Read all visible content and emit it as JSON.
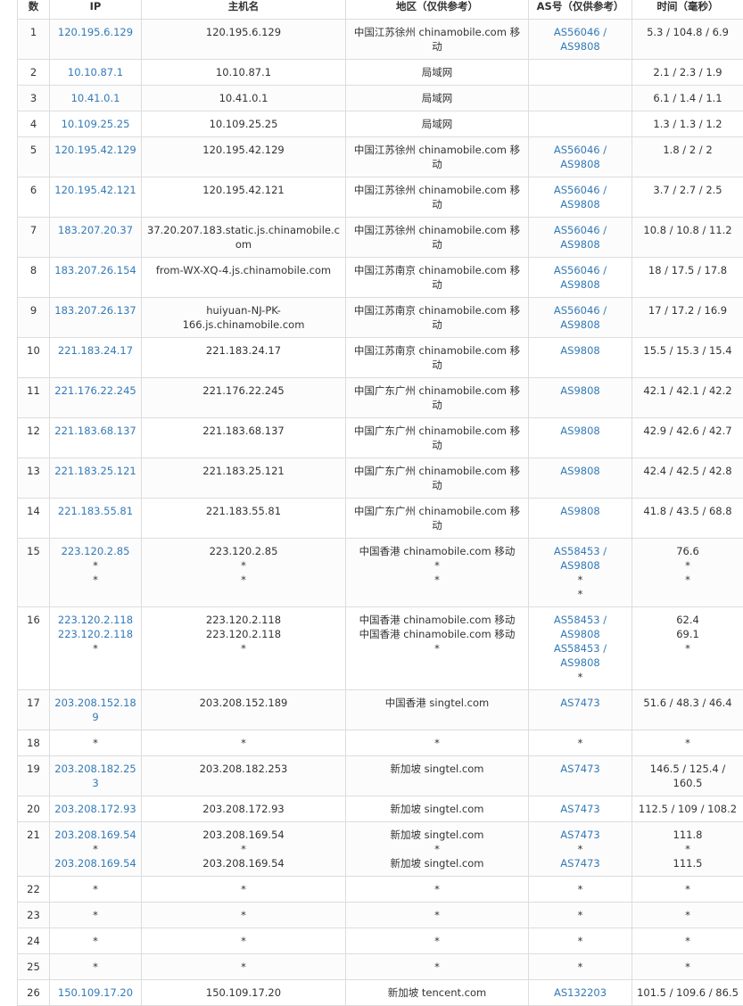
{
  "table": {
    "header": [
      "数",
      "IP",
      "主机名",
      "地区（仅供参考）",
      "AS号（仅供参考）",
      "时间（毫秒）"
    ],
    "rows": [
      {
        "hop": "1",
        "ip": [
          "120.195.6.129"
        ],
        "host": [
          "120.195.6.129"
        ],
        "region": [
          "中国江苏徐州 chinamobile.com 移动"
        ],
        "as": [
          "AS56046 / AS9808"
        ],
        "time": [
          "5.3 / 104.8 / 6.9"
        ]
      },
      {
        "hop": "2",
        "ip": [
          "10.10.87.1"
        ],
        "host": [
          "10.10.87.1"
        ],
        "region": [
          "局域网"
        ],
        "as": [],
        "time": [
          "2.1 / 2.3 / 1.9"
        ]
      },
      {
        "hop": "3",
        "ip": [
          "10.41.0.1"
        ],
        "host": [
          "10.41.0.1"
        ],
        "region": [
          "局域网"
        ],
        "as": [],
        "time": [
          "6.1 / 1.4 / 1.1"
        ]
      },
      {
        "hop": "4",
        "ip": [
          "10.109.25.25"
        ],
        "host": [
          "10.109.25.25"
        ],
        "region": [
          "局域网"
        ],
        "as": [],
        "time": [
          "1.3 / 1.3 / 1.2"
        ]
      },
      {
        "hop": "5",
        "ip": [
          "120.195.42.129"
        ],
        "host": [
          "120.195.42.129"
        ],
        "region": [
          "中国江苏徐州 chinamobile.com 移动"
        ],
        "as": [
          "AS56046 / AS9808"
        ],
        "time": [
          "1.8 / 2 / 2"
        ]
      },
      {
        "hop": "6",
        "ip": [
          "120.195.42.121"
        ],
        "host": [
          "120.195.42.121"
        ],
        "region": [
          "中国江苏徐州 chinamobile.com 移动"
        ],
        "as": [
          "AS56046 / AS9808"
        ],
        "time": [
          "3.7 / 2.7 / 2.5"
        ]
      },
      {
        "hop": "7",
        "ip": [
          "183.207.20.37"
        ],
        "host": [
          "37.20.207.183.static.js.chinamobile.com"
        ],
        "region": [
          "中国江苏徐州 chinamobile.com 移动"
        ],
        "as": [
          "AS56046 / AS9808"
        ],
        "time": [
          "10.8 / 10.8 / 11.2"
        ]
      },
      {
        "hop": "8",
        "ip": [
          "183.207.26.154"
        ],
        "host": [
          "from-WX-XQ-4.js.chinamobile.com"
        ],
        "region": [
          "中国江苏南京 chinamobile.com 移动"
        ],
        "as": [
          "AS56046 / AS9808"
        ],
        "time": [
          "18 / 17.5 / 17.8"
        ]
      },
      {
        "hop": "9",
        "ip": [
          "183.207.26.137"
        ],
        "host": [
          "huiyuan-NJ-PK-166.js.chinamobile.com"
        ],
        "region": [
          "中国江苏南京 chinamobile.com 移动"
        ],
        "as": [
          "AS56046 / AS9808"
        ],
        "time": [
          "17 / 17.2 / 16.9"
        ]
      },
      {
        "hop": "10",
        "ip": [
          "221.183.24.17"
        ],
        "host": [
          "221.183.24.17"
        ],
        "region": [
          "中国江苏南京 chinamobile.com 移动"
        ],
        "as": [
          "AS9808"
        ],
        "time": [
          "15.5 / 15.3 / 15.4"
        ]
      },
      {
        "hop": "11",
        "ip": [
          "221.176.22.245"
        ],
        "host": [
          "221.176.22.245"
        ],
        "region": [
          "中国广东广州 chinamobile.com 移动"
        ],
        "as": [
          "AS9808"
        ],
        "time": [
          "42.1 / 42.1 / 42.2"
        ]
      },
      {
        "hop": "12",
        "ip": [
          "221.183.68.137"
        ],
        "host": [
          "221.183.68.137"
        ],
        "region": [
          "中国广东广州 chinamobile.com 移动"
        ],
        "as": [
          "AS9808"
        ],
        "time": [
          "42.9 / 42.6 / 42.7"
        ]
      },
      {
        "hop": "13",
        "ip": [
          "221.183.25.121"
        ],
        "host": [
          "221.183.25.121"
        ],
        "region": [
          "中国广东广州 chinamobile.com 移动"
        ],
        "as": [
          "AS9808"
        ],
        "time": [
          "42.4 / 42.5 / 42.8"
        ]
      },
      {
        "hop": "14",
        "ip": [
          "221.183.55.81"
        ],
        "host": [
          "221.183.55.81"
        ],
        "region": [
          "中国广东广州 chinamobile.com 移动"
        ],
        "as": [
          "AS9808"
        ],
        "time": [
          "41.8 / 43.5 / 68.8"
        ]
      },
      {
        "hop": "15",
        "ip": [
          "223.120.2.85",
          "*",
          "*"
        ],
        "host": [
          "223.120.2.85",
          "*",
          "*"
        ],
        "region": [
          "中国香港 chinamobile.com 移动",
          "*",
          "*"
        ],
        "as": [
          "AS58453 / AS9808",
          "*",
          "*"
        ],
        "time": [
          "76.6",
          "*",
          "*"
        ]
      },
      {
        "hop": "16",
        "ip": [
          "223.120.2.118",
          "223.120.2.118",
          "*"
        ],
        "host": [
          "223.120.2.118",
          "223.120.2.118",
          "*"
        ],
        "region": [
          "中国香港 chinamobile.com 移动",
          "中国香港 chinamobile.com 移动",
          "*"
        ],
        "as": [
          "AS58453 / AS9808",
          "AS58453 / AS9808",
          "*"
        ],
        "time": [
          "62.4",
          "69.1",
          "*"
        ]
      },
      {
        "hop": "17",
        "ip": [
          "203.208.152.189"
        ],
        "host": [
          "203.208.152.189"
        ],
        "region": [
          "中国香港 singtel.com"
        ],
        "as": [
          "AS7473"
        ],
        "time": [
          "51.6 / 48.3 / 46.4"
        ]
      },
      {
        "hop": "18",
        "ip": [
          "*"
        ],
        "host": [
          "*"
        ],
        "region": [
          "*"
        ],
        "as": [
          "*"
        ],
        "time": [
          "*"
        ]
      },
      {
        "hop": "19",
        "ip": [
          "203.208.182.253"
        ],
        "host": [
          "203.208.182.253"
        ],
        "region": [
          "新加坡 singtel.com"
        ],
        "as": [
          "AS7473"
        ],
        "time": [
          "146.5 / 125.4 / 160.5"
        ]
      },
      {
        "hop": "20",
        "ip": [
          "203.208.172.93"
        ],
        "host": [
          "203.208.172.93"
        ],
        "region": [
          "新加坡 singtel.com"
        ],
        "as": [
          "AS7473"
        ],
        "time": [
          "112.5 / 109 / 108.2"
        ]
      },
      {
        "hop": "21",
        "ip": [
          "203.208.169.54",
          "*",
          "203.208.169.54"
        ],
        "host": [
          "203.208.169.54",
          "*",
          "203.208.169.54"
        ],
        "region": [
          "新加坡 singtel.com",
          "*",
          "新加坡 singtel.com"
        ],
        "as": [
          "AS7473",
          "*",
          "AS7473"
        ],
        "time": [
          "111.8",
          "*",
          "111.5"
        ]
      },
      {
        "hop": "22",
        "ip": [
          "*"
        ],
        "host": [
          "*"
        ],
        "region": [
          "*"
        ],
        "as": [
          "*"
        ],
        "time": [
          "*"
        ]
      },
      {
        "hop": "23",
        "ip": [
          "*"
        ],
        "host": [
          "*"
        ],
        "region": [
          "*"
        ],
        "as": [
          "*"
        ],
        "time": [
          "*"
        ]
      },
      {
        "hop": "24",
        "ip": [
          "*"
        ],
        "host": [
          "*"
        ],
        "region": [
          "*"
        ],
        "as": [
          "*"
        ],
        "time": [
          "*"
        ]
      },
      {
        "hop": "25",
        "ip": [
          "*"
        ],
        "host": [
          "*"
        ],
        "region": [
          "*"
        ],
        "as": [
          "*"
        ],
        "time": [
          "*"
        ]
      },
      {
        "hop": "26",
        "ip": [
          "150.109.17.20"
        ],
        "host": [
          "150.109.17.20"
        ],
        "region": [
          "新加坡 tencent.com"
        ],
        "as": [
          "AS132203"
        ],
        "time": [
          "101.5 / 109.6 / 86.5"
        ]
      }
    ]
  }
}
